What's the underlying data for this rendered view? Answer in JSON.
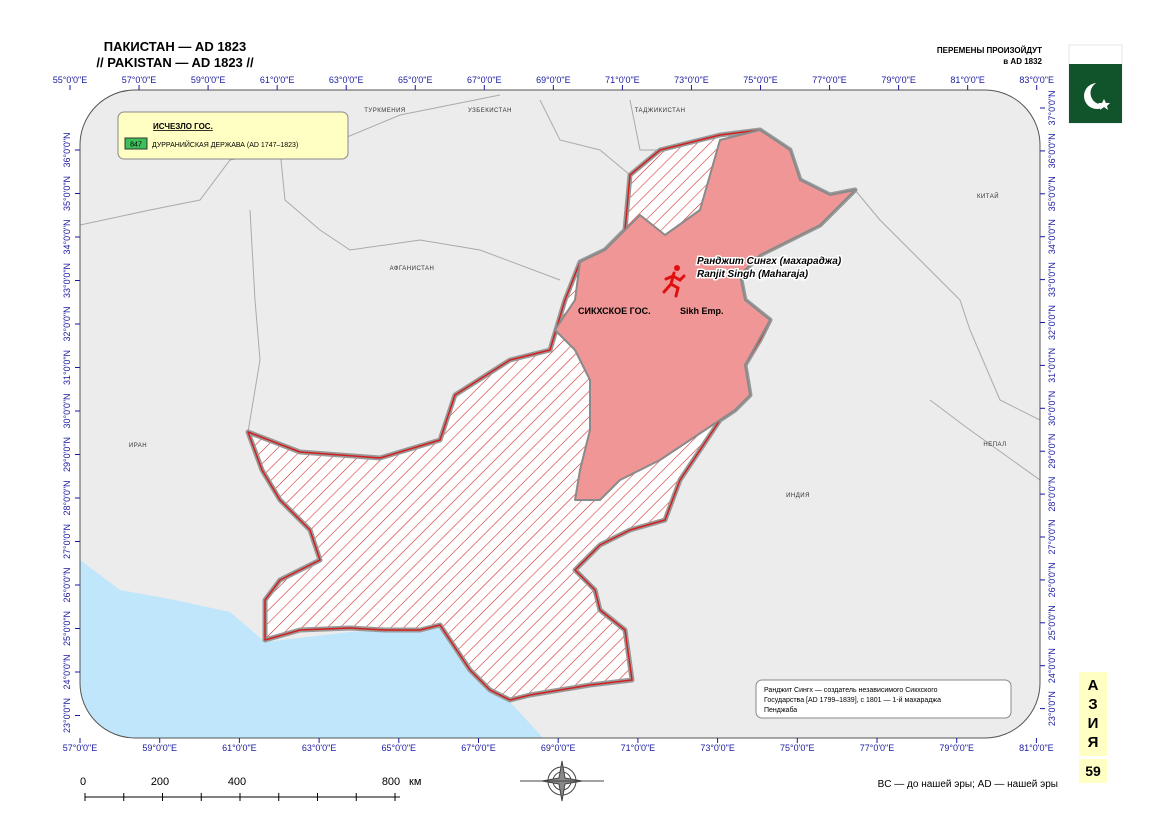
{
  "header": {
    "title_ru": "ПАКИСТАН — AD 1823",
    "title_en": "// PAKISTAN — AD 1823 //",
    "changes": "ПЕРЕМЕНЫ ПРОИЗОЙДУТ",
    "changes_year": "в AD 1832"
  },
  "axes": {
    "top": [
      "55°0'0\"E",
      "57°0'0\"E",
      "59°0'0\"E",
      "61°0'0\"E",
      "63°0'0\"E",
      "65°0'0\"E",
      "67°0'0\"E",
      "69°0'0\"E",
      "71°0'0\"E",
      "73°0'0\"E",
      "75°0'0\"E",
      "77°0'0\"E",
      "79°0'0\"E",
      "81°0'0\"E",
      "83°0'0\"E"
    ],
    "bottom": [
      "57°0'0\"E",
      "59°0'0\"E",
      "61°0'0\"E",
      "63°0'0\"E",
      "65°0'0\"E",
      "67°0'0\"E",
      "69°0'0\"E",
      "71°0'0\"E",
      "73°0'0\"E",
      "75°0'0\"E",
      "77°0'0\"E",
      "79°0'0\"E",
      "81°0'0\"E"
    ],
    "left": [
      "36°0'0\"N",
      "35°0'0\"N",
      "34°0'0\"N",
      "33°0'0\"N",
      "32°0'0\"N",
      "31°0'0\"N",
      "30°0'0\"N",
      "29°0'0\"N",
      "28°0'0\"N",
      "27°0'0\"N",
      "26°0'0\"N",
      "25°0'0\"N",
      "24°0'0\"N",
      "23°0'0\"N"
    ],
    "right": [
      "37°0'0\"N",
      "36°0'0\"N",
      "35°0'0\"N",
      "34°0'0\"N",
      "33°0'0\"N",
      "32°0'0\"N",
      "31°0'0\"N",
      "30°0'0\"N",
      "29°0'0\"N",
      "28°0'0\"N",
      "27°0'0\"N",
      "26°0'0\"N",
      "25°0'0\"N",
      "24°0'0\"N",
      "23°0'0\"N"
    ]
  },
  "legend": {
    "heading": "ИСЧЕЗЛО ГОС.",
    "code": "847",
    "item": "ДУРРАНИЙСКАЯ ДЕРЖАВА (AD 1747–1823)"
  },
  "countries": [
    "ТУРКМЕНИЯ",
    "УЗБЕКИСТАН",
    "ТАДЖИКИСТАН",
    "АФГАНИСТАН",
    "ИРАН",
    "КИТАЙ",
    "НЕПАЛ",
    "ИНДИЯ"
  ],
  "ruler": {
    "ru": "Ранджит Сингх (махараджа)",
    "en": "Ranjit Singh (Maharaja)"
  },
  "state": {
    "ru": "СИКХСКОЕ ГОС.",
    "en": "Sikh Emp."
  },
  "note": [
    "Ранджит Сингх — создатель независимого Сикхского",
    "Государства [AD 1799–1839], с 1801 — 1-й махараджа",
    "Пенджаба"
  ],
  "scale": {
    "labels": [
      "0",
      "200",
      "400",
      "800"
    ],
    "unit": "км"
  },
  "footnote": "BC — до нашей эры; AD — нашей эры",
  "side": {
    "letters": [
      "А",
      "З",
      "И",
      "Я"
    ],
    "page": "59"
  }
}
